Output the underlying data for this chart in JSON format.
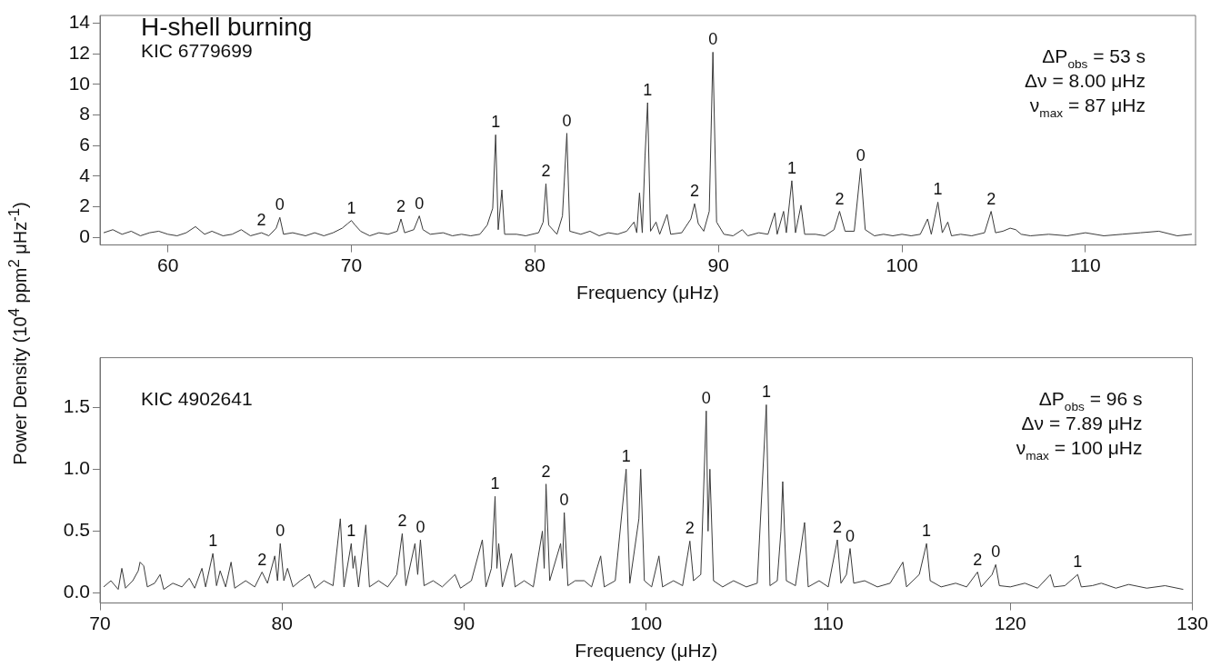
{
  "chart_data": [
    {
      "type": "line",
      "title": "H-shell burning",
      "xlabel": "Frequency (μHz)",
      "ylabel": "Power Density (10$^{4}$ ppm$^{2}$ μHz$^{-1}$)",
      "xlim": [
        56.3,
        116
      ],
      "xticks": [
        60,
        70,
        80,
        90,
        100,
        110
      ],
      "ylim": [
        -0.5,
        14.5
      ],
      "yticks": [
        0,
        2,
        4,
        6,
        8,
        10,
        12,
        14
      ],
      "series": [
        {
          "color": "#3a3a3a",
          "x": [
            56.5,
            57.0,
            57.5,
            58.0,
            58.5,
            59.0,
            59.5,
            60.0,
            60.5,
            61.0,
            61.5,
            62.0,
            62.4,
            63.0,
            63.5,
            64.0,
            64.5,
            65.1,
            65.5,
            65.9,
            66.1,
            66.3,
            66.8,
            67.5,
            68.0,
            68.5,
            69.0,
            69.5,
            69.8,
            70.0,
            70.2,
            70.5,
            71.0,
            71.5,
            72.0,
            72.5,
            72.7,
            72.9,
            73.4,
            73.7,
            73.9,
            74.3,
            75.0,
            75.5,
            76.0,
            76.5,
            77.0,
            77.4,
            77.7,
            77.86,
            78.0,
            78.2,
            78.35,
            79.0,
            79.5,
            80.2,
            80.45,
            80.6,
            80.75,
            81.2,
            81.5,
            81.74,
            81.9,
            82.5,
            83.0,
            83.5,
            84.0,
            84.5,
            85.0,
            85.4,
            85.55,
            85.7,
            85.85,
            86.0,
            86.14,
            86.3,
            86.6,
            86.8,
            87.2,
            87.4,
            88.0,
            88.5,
            88.7,
            88.9,
            89.2,
            89.5,
            89.7,
            89.9,
            90.3,
            90.8,
            91.3,
            91.6,
            92.2,
            92.7,
            93.07,
            93.2,
            93.55,
            93.7,
            94.0,
            94.2,
            94.5,
            94.7,
            95.3,
            95.8,
            96.3,
            96.6,
            96.9,
            97.4,
            97.75,
            98.0,
            98.5,
            99.0,
            99.5,
            100.0,
            100.5,
            101.0,
            101.4,
            101.6,
            101.96,
            102.2,
            102.5,
            102.7,
            103.2,
            103.8,
            104.5,
            104.86,
            105.1,
            105.5,
            105.9,
            106.2,
            106.5,
            107.0,
            108.0,
            109.0,
            110.0,
            111.0,
            112.0,
            113.0,
            114.0,
            115.0,
            115.8
          ],
          "values": [
            0.3,
            0.5,
            0.2,
            0.4,
            0.1,
            0.3,
            0.4,
            0.2,
            0.1,
            0.3,
            0.7,
            0.2,
            0.4,
            0.1,
            0.2,
            0.5,
            0.1,
            0.3,
            0.1,
            0.6,
            1.3,
            0.2,
            0.3,
            0.1,
            0.3,
            0.1,
            0.3,
            0.6,
            0.9,
            1.1,
            0.8,
            0.4,
            0.1,
            0.3,
            0.2,
            0.4,
            1.2,
            0.3,
            0.5,
            1.4,
            0.5,
            0.2,
            0.3,
            0.1,
            0.2,
            0.1,
            0.2,
            0.8,
            1.9,
            6.7,
            0.5,
            3.1,
            0.2,
            0.2,
            0.1,
            0.3,
            1.0,
            3.5,
            0.8,
            0.2,
            1.4,
            6.8,
            0.4,
            0.2,
            0.4,
            0.1,
            0.3,
            0.2,
            0.4,
            1.0,
            0.3,
            2.9,
            0.3,
            5.3,
            8.8,
            0.4,
            1.0,
            0.2,
            1.5,
            0.2,
            0.3,
            1.2,
            2.2,
            0.9,
            0.4,
            1.7,
            12.1,
            1.0,
            0.2,
            0.1,
            0.5,
            0.1,
            0.3,
            0.2,
            1.6,
            0.2,
            1.7,
            0.3,
            3.7,
            0.3,
            2.1,
            0.2,
            0.2,
            0.1,
            0.5,
            1.7,
            0.4,
            0.4,
            4.5,
            0.5,
            0.1,
            0.2,
            0.1,
            0.2,
            0.1,
            0.2,
            1.2,
            0.2,
            2.3,
            0.3,
            1.0,
            0.1,
            0.2,
            0.1,
            0.3,
            1.7,
            0.3,
            0.4,
            0.6,
            0.5,
            0.2,
            0.1,
            0.2,
            0.1,
            0.3,
            0.1,
            0.2,
            0.3,
            0.4,
            0.1,
            0.2
          ]
        }
      ],
      "annotations": [
        "KIC 6779699",
        "ΔP$_{obs}$ = 53 s",
        "Δν = 8.00 μHz",
        "ν$_{max}$ = 87 μHz",
        {
          "text": "2",
          "x": 65.1,
          "y": 0.3
        },
        {
          "text": "0",
          "x": 66.1,
          "y": 1.3
        },
        {
          "text": "1",
          "x": 70.0,
          "y": 1.1
        },
        {
          "text": "2",
          "x": 72.7,
          "y": 1.2
        },
        {
          "text": "0",
          "x": 73.7,
          "y": 1.4
        },
        {
          "text": "1",
          "x": 77.86,
          "y": 6.7
        },
        {
          "text": "2",
          "x": 80.6,
          "y": 3.5
        },
        {
          "text": "0",
          "x": 81.74,
          "y": 6.8
        },
        {
          "text": "1",
          "x": 86.14,
          "y": 8.8
        },
        {
          "text": "2",
          "x": 88.7,
          "y": 2.2
        },
        {
          "text": "0",
          "x": 89.7,
          "y": 12.1
        },
        {
          "text": "1",
          "x": 94.0,
          "y": 3.7
        },
        {
          "text": "2",
          "x": 96.6,
          "y": 1.7
        },
        {
          "text": "0",
          "x": 97.75,
          "y": 4.5
        },
        {
          "text": "1",
          "x": 101.96,
          "y": 2.3
        },
        {
          "text": "2",
          "x": 104.86,
          "y": 1.7
        }
      ]
    },
    {
      "type": "line",
      "xlabel": "Frequency (μHz)",
      "xlim": [
        70,
        130
      ],
      "xticks": [
        70,
        80,
        90,
        100,
        110,
        120,
        130
      ],
      "ylim": [
        -0.08,
        1.9
      ],
      "yticks": [
        {
          "value": 0,
          "label": "0.0"
        },
        {
          "value": 0.5,
          "label": "0.5"
        },
        {
          "value": 1,
          "label": "1.0"
        },
        {
          "value": 1.5,
          "label": "1.5"
        }
      ],
      "series": [
        {
          "color": "#3a3a3a",
          "x": [
            70.2,
            70.6,
            71.0,
            71.2,
            71.4,
            71.8,
            72.1,
            72.2,
            72.4,
            72.6,
            73.0,
            73.3,
            73.5,
            74.0,
            74.5,
            74.9,
            75.2,
            75.6,
            75.8,
            76.2,
            76.4,
            76.6,
            76.9,
            77.2,
            77.4,
            78.0,
            78.5,
            78.9,
            79.2,
            79.6,
            79.75,
            79.9,
            80.1,
            80.3,
            80.6,
            81.0,
            81.5,
            81.8,
            82.3,
            82.8,
            83.2,
            83.4,
            83.8,
            83.9,
            84.0,
            84.2,
            84.6,
            84.8,
            85.3,
            85.8,
            86.3,
            86.6,
            86.8,
            87.3,
            87.45,
            87.6,
            87.8,
            88.3,
            88.8,
            89.5,
            89.8,
            90.4,
            91.0,
            91.2,
            91.5,
            91.7,
            91.8,
            91.9,
            92.1,
            92.6,
            92.8,
            93.3,
            93.8,
            94.3,
            94.4,
            94.5,
            94.7,
            95.3,
            95.4,
            95.5,
            95.7,
            96.1,
            96.6,
            97.0,
            97.5,
            97.7,
            98.3,
            98.9,
            99.1,
            99.6,
            99.7,
            99.9,
            100.3,
            100.7,
            100.9,
            101.5,
            102.0,
            102.4,
            102.6,
            103.0,
            103.3,
            103.4,
            103.5,
            103.7,
            104.2,
            104.8,
            105.5,
            106.1,
            106.6,
            106.8,
            107.2,
            107.4,
            107.5,
            107.7,
            108.2,
            108.7,
            108.9,
            109.5,
            110.0,
            110.5,
            110.7,
            111.0,
            111.2,
            111.4,
            112.0,
            112.7,
            113.4,
            114.1,
            114.3,
            115.0,
            115.4,
            115.6,
            116.2,
            117.0,
            117.6,
            118.2,
            118.4,
            119.0,
            119.2,
            119.4,
            120.0,
            120.8,
            121.5,
            122.2,
            122.4,
            123.0,
            123.7,
            123.9,
            124.5,
            125.0,
            125.8,
            126.5,
            127.5,
            128.5,
            129.5
          ],
          "values": [
            0.05,
            0.1,
            0.03,
            0.2,
            0.04,
            0.1,
            0.18,
            0.25,
            0.22,
            0.05,
            0.08,
            0.15,
            0.03,
            0.08,
            0.05,
            0.12,
            0.04,
            0.2,
            0.05,
            0.32,
            0.06,
            0.18,
            0.05,
            0.25,
            0.04,
            0.1,
            0.05,
            0.17,
            0.08,
            0.3,
            0.1,
            0.4,
            0.1,
            0.2,
            0.05,
            0.1,
            0.15,
            0.04,
            0.1,
            0.06,
            0.6,
            0.05,
            0.4,
            0.2,
            0.3,
            0.05,
            0.55,
            0.05,
            0.1,
            0.05,
            0.15,
            0.48,
            0.06,
            0.4,
            0.15,
            0.43,
            0.06,
            0.1,
            0.05,
            0.15,
            0.04,
            0.1,
            0.43,
            0.05,
            0.2,
            0.78,
            0.2,
            0.4,
            0.05,
            0.32,
            0.05,
            0.1,
            0.05,
            0.5,
            0.2,
            0.88,
            0.1,
            0.4,
            0.2,
            0.65,
            0.06,
            0.1,
            0.1,
            0.05,
            0.3,
            0.05,
            0.1,
            1.0,
            0.08,
            0.6,
            1.0,
            0.1,
            0.05,
            0.3,
            0.05,
            0.1,
            0.06,
            0.42,
            0.1,
            0.15,
            1.47,
            0.5,
            1.0,
            0.1,
            0.05,
            0.1,
            0.05,
            0.08,
            1.52,
            0.06,
            0.1,
            0.5,
            0.9,
            0.1,
            0.06,
            0.57,
            0.05,
            0.1,
            0.05,
            0.43,
            0.08,
            0.15,
            0.36,
            0.08,
            0.1,
            0.05,
            0.08,
            0.25,
            0.05,
            0.15,
            0.4,
            0.1,
            0.05,
            0.08,
            0.05,
            0.17,
            0.05,
            0.15,
            0.23,
            0.06,
            0.05,
            0.08,
            0.04,
            0.15,
            0.05,
            0.06,
            0.15,
            0.05,
            0.06,
            0.08,
            0.04,
            0.07,
            0.04,
            0.06,
            0.03
          ]
        }
      ],
      "annotations": [
        "KIC 4902641",
        "ΔP$_{obs}$ = 96 s",
        "Δν = 7.89 μHz",
        "ν$_{max}$ = 100 μHz",
        {
          "text": "1",
          "x": 76.2,
          "y": 0.32
        },
        {
          "text": "2",
          "x": 78.9,
          "y": 0.17
        },
        {
          "text": "0",
          "x": 79.9,
          "y": 0.4
        },
        {
          "text": "1",
          "x": 83.8,
          "y": 0.4
        },
        {
          "text": "2",
          "x": 86.6,
          "y": 0.48
        },
        {
          "text": "0",
          "x": 87.6,
          "y": 0.43
        },
        {
          "text": "1",
          "x": 91.7,
          "y": 0.78
        },
        {
          "text": "2",
          "x": 94.5,
          "y": 0.88
        },
        {
          "text": "0",
          "x": 95.5,
          "y": 0.65
        },
        {
          "text": "1",
          "x": 98.9,
          "y": 1.0
        },
        {
          "text": "2",
          "x": 102.4,
          "y": 0.42
        },
        {
          "text": "0",
          "x": 103.3,
          "y": 1.47
        },
        {
          "text": "1",
          "x": 106.6,
          "y": 1.52
        },
        {
          "text": "2",
          "x": 110.5,
          "y": 0.43
        },
        {
          "text": "0",
          "x": 111.2,
          "y": 0.36
        },
        {
          "text": "1",
          "x": 115.4,
          "y": 0.4
        },
        {
          "text": "2",
          "x": 118.2,
          "y": 0.17
        },
        {
          "text": "0",
          "x": 119.2,
          "y": 0.23
        },
        {
          "text": "1",
          "x": 123.7,
          "y": 0.15
        }
      ]
    }
  ]
}
